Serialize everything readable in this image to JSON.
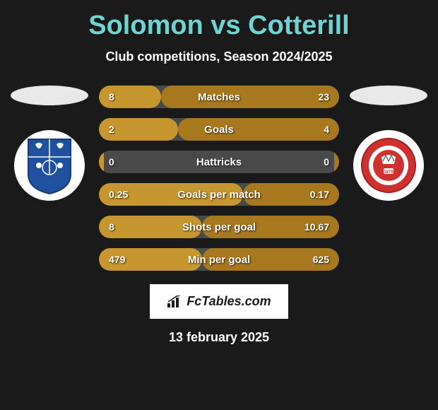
{
  "title": "Solomon vs Cotterill",
  "subtitle": "Club competitions, Season 2024/2025",
  "footer_date": "13 february 2025",
  "logo_text": "FcTables.com",
  "colors": {
    "title_color": "#6dd4d4",
    "left_fill": "#c8962e",
    "right_fill": "#a8781e",
    "row_bg": "#4a4a4a",
    "background": "#1a1a1a",
    "tranmere_blue": "#2050a0",
    "swindon_red": "#d03030"
  },
  "stats": [
    {
      "label": "Matches",
      "left_val": "8",
      "right_val": "23",
      "left_pct": 26,
      "right_pct": 74
    },
    {
      "label": "Goals",
      "left_val": "2",
      "right_val": "4",
      "left_pct": 33,
      "right_pct": 67
    },
    {
      "label": "Hattricks",
      "left_val": "0",
      "right_val": "0",
      "left_pct": 2,
      "right_pct": 2
    },
    {
      "label": "Goals per match",
      "left_val": "0.25",
      "right_val": "0.17",
      "left_pct": 60,
      "right_pct": 40
    },
    {
      "label": "Shots per goal",
      "left_val": "8",
      "right_val": "10.67",
      "left_pct": 43,
      "right_pct": 57
    },
    {
      "label": "Min per goal",
      "left_val": "479",
      "right_val": "625",
      "left_pct": 43,
      "right_pct": 57
    }
  ]
}
